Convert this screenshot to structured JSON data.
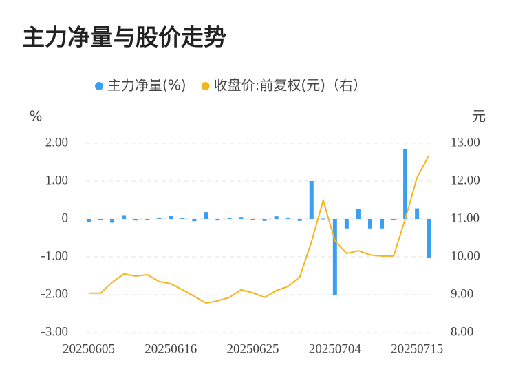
{
  "chart_data": {
    "type": "bar-line",
    "title": "主力净量与股价走势",
    "y_label": "%",
    "y2_label": "元",
    "categories": [
      "20250605",
      null,
      null,
      null,
      null,
      null,
      null,
      "20250616",
      null,
      null,
      null,
      null,
      null,
      null,
      "20250625",
      null,
      null,
      null,
      null,
      null,
      null,
      "20250704",
      null,
      null,
      null,
      null,
      null,
      null,
      "20250715",
      null
    ],
    "series": [
      {
        "name": "主力净量(%)",
        "type": "bar",
        "color": "#3a9ff0",
        "values": [
          -0.08,
          -0.03,
          -0.1,
          0.1,
          -0.04,
          -0.01,
          0.03,
          0.08,
          0.02,
          -0.06,
          0.18,
          -0.04,
          0.02,
          0.05,
          -0.02,
          -0.05,
          0.07,
          0.02,
          -0.05,
          1.0,
          0.01,
          -2.0,
          -0.25,
          0.26,
          -0.25,
          -0.25,
          -0.03,
          1.85,
          0.28,
          -1.02
        ]
      },
      {
        "name": "收盘价:前复权(元)（右）",
        "type": "line",
        "axis": "y2",
        "color": "#f4b51c",
        "values": [
          9.04,
          9.04,
          9.33,
          9.55,
          9.49,
          9.53,
          9.35,
          9.29,
          9.13,
          8.96,
          8.78,
          8.84,
          8.93,
          9.13,
          9.05,
          8.93,
          9.11,
          9.22,
          9.47,
          10.4,
          11.49,
          10.42,
          10.09,
          10.16,
          10.05,
          10.02,
          10.02,
          11.0,
          12.09,
          12.67
        ]
      }
    ],
    "ylim": [
      -3,
      2
    ],
    "yticks": [
      {
        "value": 2,
        "label": "2.00"
      },
      {
        "value": 1,
        "label": "1.00"
      },
      0,
      {
        "value": -1,
        "label": "-1.00"
      },
      {
        "value": -2,
        "label": "-2.00"
      },
      {
        "value": -3,
        "label": "-3.00"
      }
    ],
    "y2lim": [
      8,
      13
    ],
    "y2ticks": [
      {
        "value": 13,
        "label": "13.00"
      },
      {
        "value": 12,
        "label": "12.00"
      },
      {
        "value": 11,
        "label": "11.00"
      },
      {
        "value": 10,
        "label": "10.00"
      },
      {
        "value": 9,
        "label": "9.00"
      },
      {
        "value": 8,
        "label": "8.00"
      }
    ],
    "grid": true
  }
}
